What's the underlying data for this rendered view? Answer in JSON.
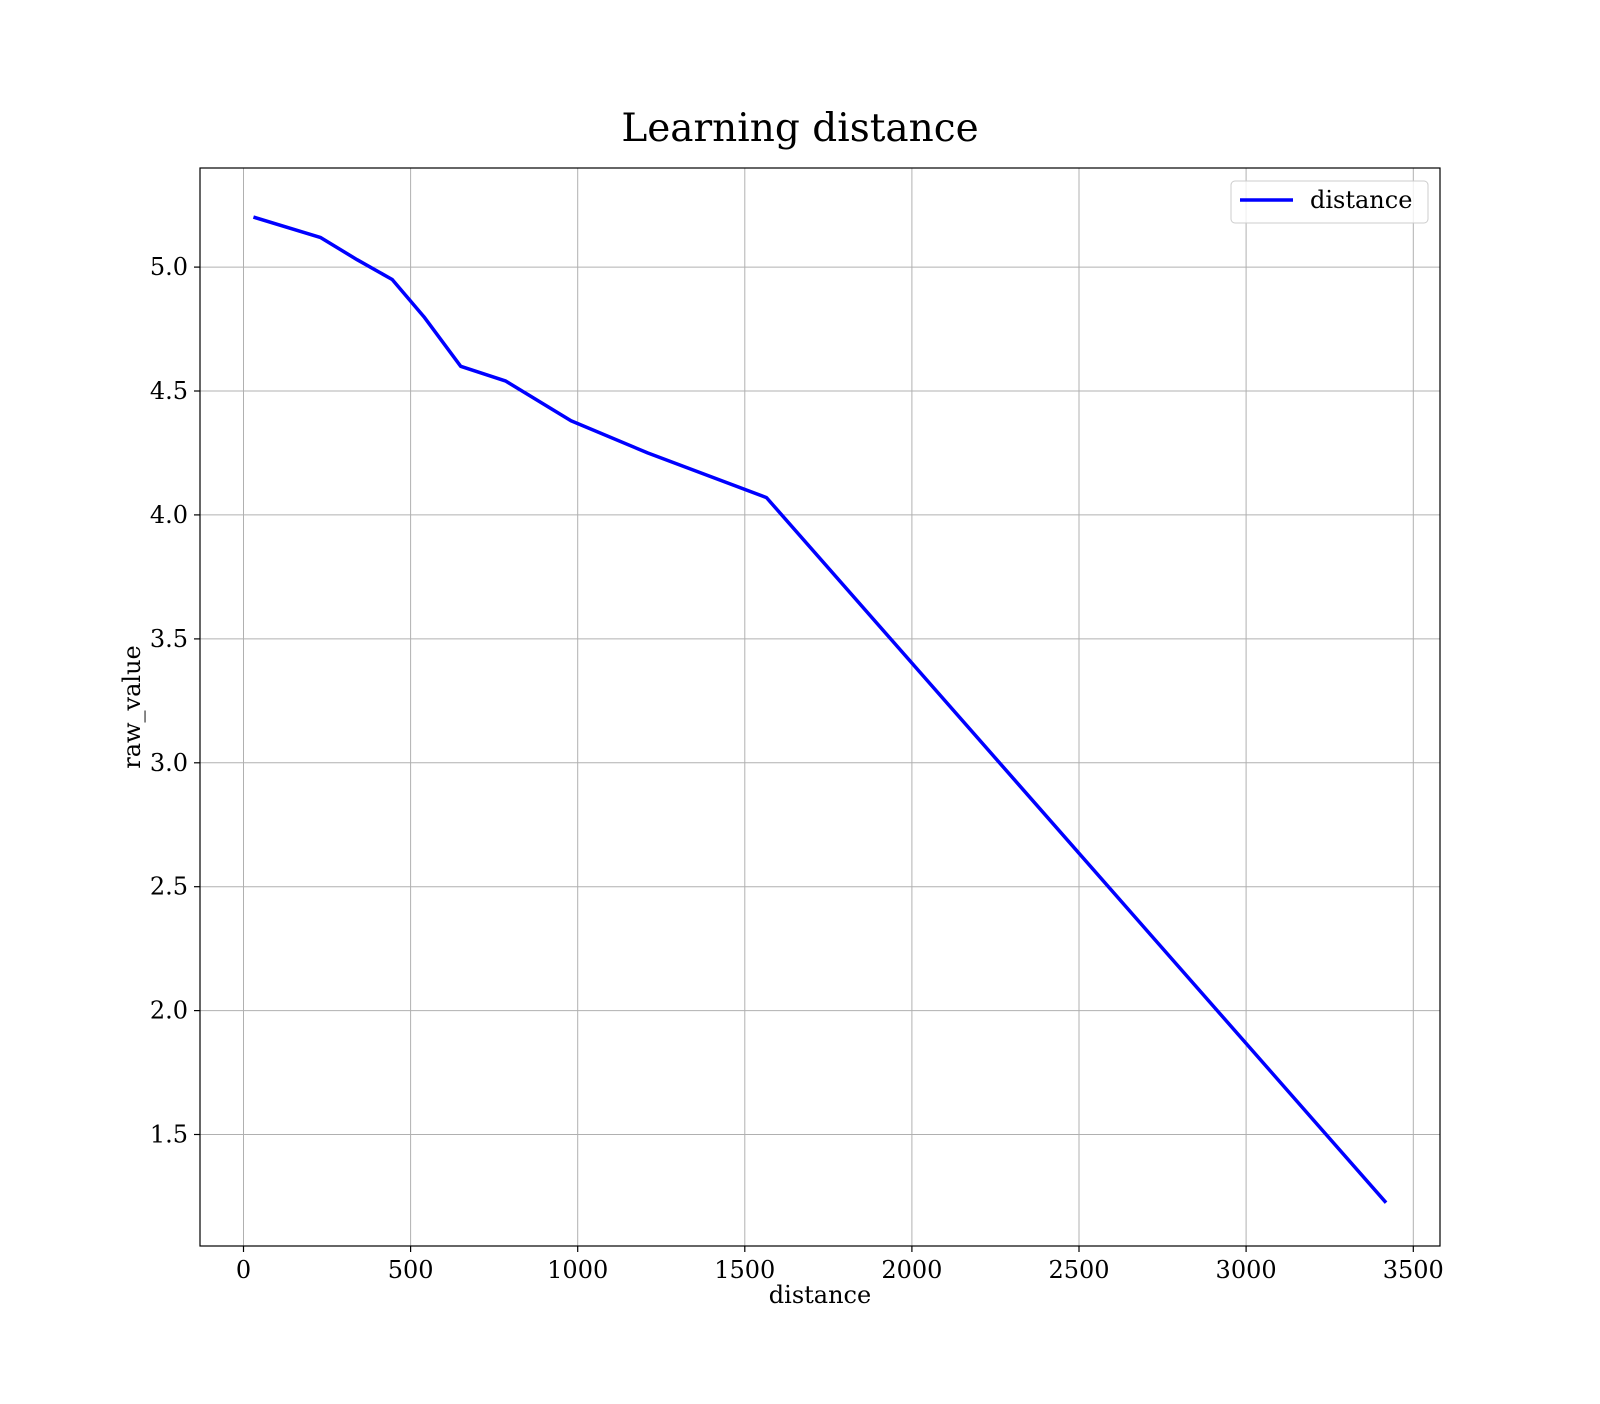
{
  "chart_data": {
    "type": "line",
    "title": "Learning distance",
    "xlabel": "distance",
    "ylabel": "raw_value",
    "xlim": [
      -130,
      3580
    ],
    "ylim": [
      1.05,
      5.4
    ],
    "xticks": [
      0,
      500,
      1000,
      1500,
      2000,
      2500,
      3000,
      3500
    ],
    "xtick_labels": [
      "0",
      "500",
      "1000",
      "1500",
      "2000",
      "2500",
      "3000",
      "3500"
    ],
    "yticks": [
      1.5,
      2.0,
      2.5,
      3.0,
      3.5,
      4.0,
      4.5,
      5.0
    ],
    "ytick_labels": [
      "1.5",
      "2.0",
      "2.5",
      "3.0",
      "3.5",
      "4.0",
      "4.5",
      "5.0"
    ],
    "grid": true,
    "legend": {
      "position": "top-right"
    },
    "series": [
      {
        "name": "distance",
        "color": "#0000ff",
        "x": [
          35,
          230,
          340,
          445,
          540,
          650,
          785,
          980,
          1210,
          1565,
          3415
        ],
        "y": [
          5.2,
          5.12,
          5.03,
          4.95,
          4.8,
          4.6,
          4.54,
          4.38,
          4.25,
          4.07,
          1.23
        ]
      }
    ]
  }
}
